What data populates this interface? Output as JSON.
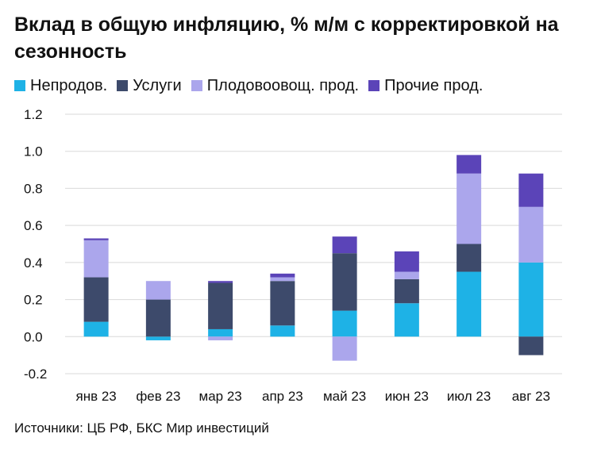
{
  "title": "Вклад в общую инфляцию, % м/м с корректировкой на сезонность",
  "source": "Источники: ЦБ РФ, БКС Мир инвестиций",
  "colors": {
    "nonfood": "#1eb2e6",
    "services": "#3d4a6b",
    "fruitveg": "#aba6ec",
    "otherfood": "#5b44b8"
  },
  "chart_data": {
    "type": "bar",
    "stacked": true,
    "categories": [
      "янв 23",
      "фев 23",
      "мар 23",
      "апр 23",
      "май 23",
      "июн 23",
      "июл 23",
      "авг 23"
    ],
    "series": [
      {
        "name": "Непродов.",
        "color": "#1eb2e6",
        "values": [
          0.08,
          -0.02,
          0.04,
          0.06,
          0.14,
          0.18,
          0.35,
          0.4
        ]
      },
      {
        "name": "Услуги",
        "color": "#3d4a6b",
        "values": [
          0.24,
          0.2,
          0.25,
          0.24,
          0.31,
          0.13,
          0.15,
          -0.1
        ]
      },
      {
        "name": "Плодовоовощ. прод.",
        "color": "#aba6ec",
        "values": [
          0.2,
          0.1,
          -0.02,
          0.02,
          -0.13,
          0.04,
          0.38,
          0.3
        ]
      },
      {
        "name": "Прочие прод.",
        "color": "#5b44b8",
        "values": [
          0.01,
          0.0,
          0.01,
          0.02,
          0.09,
          0.11,
          0.1,
          0.18
        ]
      }
    ],
    "yticks": [
      "1.2",
      "1.0",
      "0.8",
      "0.6",
      "0.4",
      "0.2",
      "0.0",
      "-0.2"
    ],
    "ylim": [
      -0.2,
      1.2
    ],
    "grid": true,
    "legend_position": "top"
  }
}
